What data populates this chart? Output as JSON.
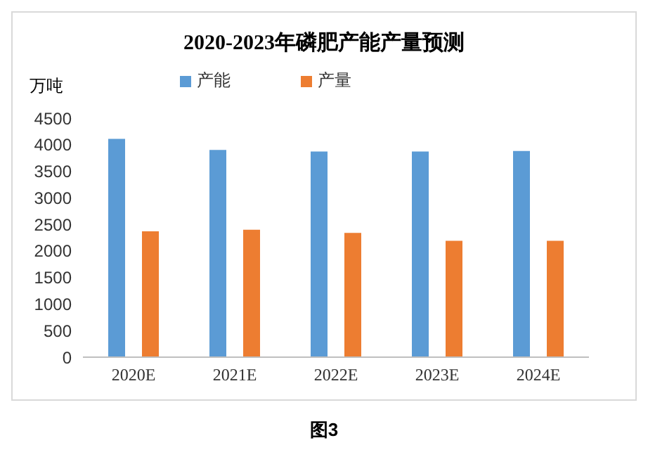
{
  "chart_data": {
    "type": "bar",
    "title": "2020-2023年磷肥产能产量预测",
    "ylabel": "万吨",
    "categories": [
      "2020E",
      "2021E",
      "2022E",
      "2023E",
      "2024E"
    ],
    "series": [
      {
        "name": "产能",
        "color": "#5b9bd5",
        "values": [
          4110,
          3900,
          3870,
          3870,
          3880
        ]
      },
      {
        "name": "产量",
        "color": "#ed7d31",
        "values": [
          2370,
          2400,
          2340,
          2190,
          2190
        ]
      }
    ],
    "ylim": [
      0,
      4500
    ],
    "yticks": [
      0,
      500,
      1000,
      1500,
      2000,
      2500,
      3000,
      3500,
      4000,
      4500
    ],
    "grid": false,
    "legend": "top",
    "annotations": [
      "图3"
    ]
  }
}
